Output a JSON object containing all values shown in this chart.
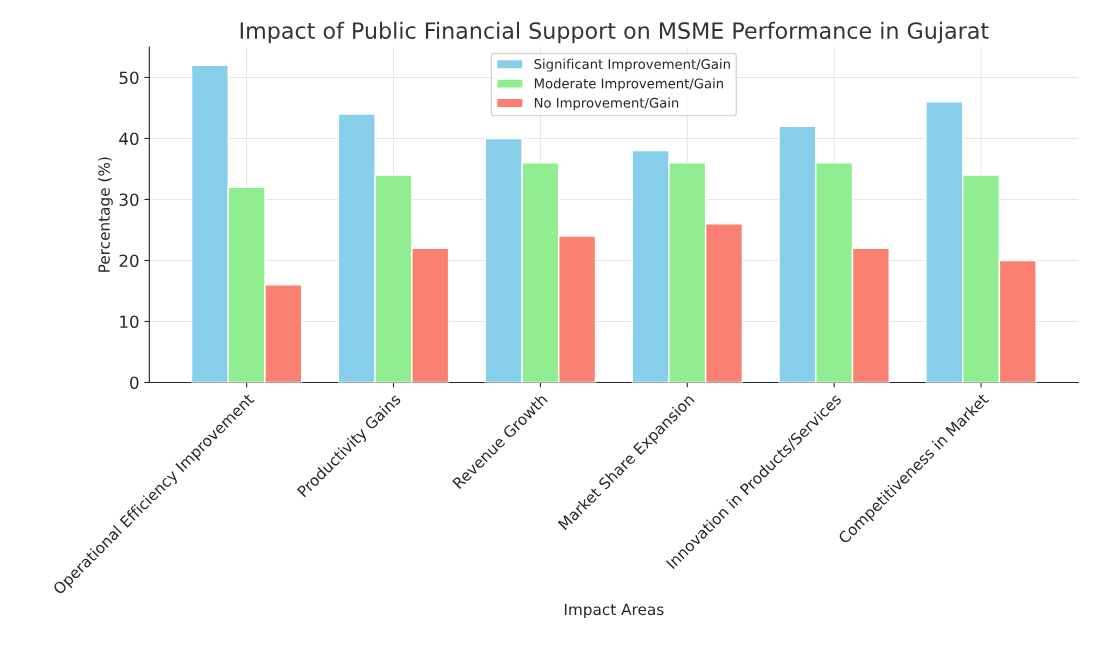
{
  "chart_data": {
    "type": "bar",
    "title": "Impact of Public Financial Support on MSME Performance in Gujarat",
    "xlabel": "Impact Areas",
    "ylabel": "Percentage (%)",
    "categories": [
      "Operational Efficiency Improvement",
      "Productivity Gains",
      "Revenue Growth",
      "Market Share Expansion",
      "Innovation in Products/Services",
      "Competitiveness in Market"
    ],
    "series": [
      {
        "name": "Significant Improvement/Gain",
        "color": "#87ceeb",
        "values": [
          52,
          44,
          40,
          38,
          42,
          46
        ]
      },
      {
        "name": "Moderate Improvement/Gain",
        "color": "#90ee90",
        "values": [
          32,
          34,
          36,
          36,
          36,
          34
        ]
      },
      {
        "name": "No Improvement/Gain",
        "color": "#fa8072",
        "values": [
          16,
          22,
          24,
          26,
          22,
          20
        ]
      }
    ],
    "ylim": [
      0,
      55
    ],
    "yticks": [
      0,
      10,
      20,
      30,
      40,
      50
    ],
    "grid": true,
    "legend": "top"
  }
}
